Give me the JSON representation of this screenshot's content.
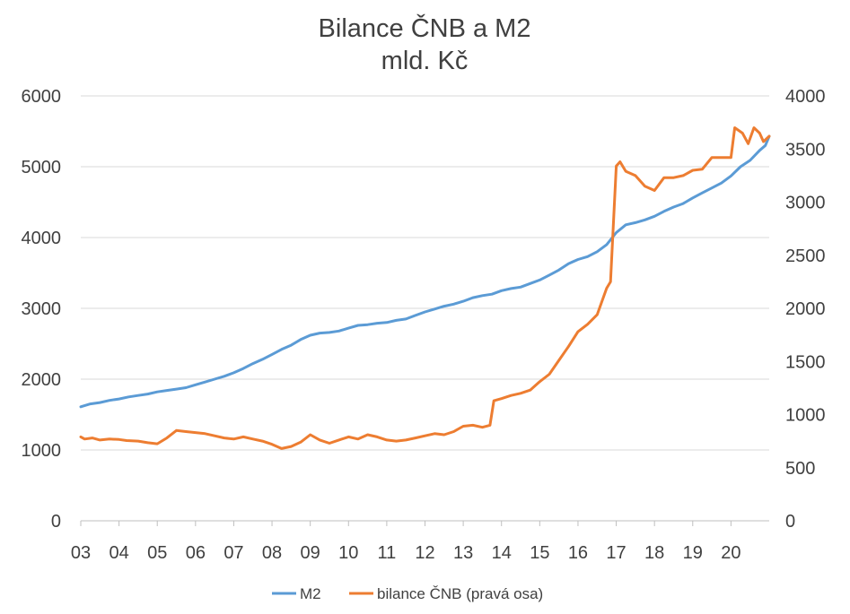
{
  "chart_data": {
    "type": "line",
    "title": "Bilance ČNB a M2",
    "subtitle": "mld. Kč",
    "x_ticks": [
      "03",
      "04",
      "05",
      "06",
      "07",
      "08",
      "09",
      "10",
      "11",
      "12",
      "13",
      "14",
      "15",
      "16",
      "17",
      "18",
      "19",
      "20"
    ],
    "x_range": [
      2003,
      2021
    ],
    "left_axis": {
      "ticks": [
        "0",
        "1000",
        "2000",
        "3000",
        "4000",
        "5000",
        "6000"
      ],
      "ylim": [
        0,
        6000
      ]
    },
    "right_axis": {
      "ticks": [
        "0",
        "500",
        "1000",
        "1500",
        "2000",
        "2500",
        "3000",
        "3500",
        "4000"
      ],
      "ylim": [
        0,
        4000
      ]
    },
    "grid": true,
    "legend_position": "bottom",
    "series": [
      {
        "name": "M2",
        "axis": "left",
        "color": "#5b9bd5",
        "points": [
          [
            2003.0,
            1610
          ],
          [
            2003.25,
            1650
          ],
          [
            2003.5,
            1670
          ],
          [
            2003.75,
            1700
          ],
          [
            2004.0,
            1720
          ],
          [
            2004.25,
            1750
          ],
          [
            2004.5,
            1770
          ],
          [
            2004.75,
            1790
          ],
          [
            2005.0,
            1820
          ],
          [
            2005.25,
            1840
          ],
          [
            2005.5,
            1860
          ],
          [
            2005.75,
            1880
          ],
          [
            2006.0,
            1920
          ],
          [
            2006.25,
            1960
          ],
          [
            2006.5,
            2000
          ],
          [
            2006.75,
            2040
          ],
          [
            2007.0,
            2090
          ],
          [
            2007.25,
            2150
          ],
          [
            2007.5,
            2220
          ],
          [
            2007.75,
            2280
          ],
          [
            2008.0,
            2350
          ],
          [
            2008.25,
            2420
          ],
          [
            2008.5,
            2480
          ],
          [
            2008.75,
            2560
          ],
          [
            2009.0,
            2620
          ],
          [
            2009.25,
            2650
          ],
          [
            2009.5,
            2660
          ],
          [
            2009.75,
            2680
          ],
          [
            2010.0,
            2720
          ],
          [
            2010.25,
            2760
          ],
          [
            2010.5,
            2770
          ],
          [
            2010.75,
            2790
          ],
          [
            2011.0,
            2800
          ],
          [
            2011.25,
            2830
          ],
          [
            2011.5,
            2850
          ],
          [
            2011.75,
            2900
          ],
          [
            2012.0,
            2950
          ],
          [
            2012.25,
            2990
          ],
          [
            2012.5,
            3030
          ],
          [
            2012.75,
            3060
          ],
          [
            2013.0,
            3100
          ],
          [
            2013.25,
            3150
          ],
          [
            2013.5,
            3180
          ],
          [
            2013.75,
            3200
          ],
          [
            2014.0,
            3250
          ],
          [
            2014.25,
            3280
          ],
          [
            2014.5,
            3300
          ],
          [
            2014.75,
            3350
          ],
          [
            2015.0,
            3400
          ],
          [
            2015.25,
            3470
          ],
          [
            2015.5,
            3540
          ],
          [
            2015.75,
            3630
          ],
          [
            2016.0,
            3690
          ],
          [
            2016.25,
            3730
          ],
          [
            2016.5,
            3800
          ],
          [
            2016.75,
            3900
          ],
          [
            2017.0,
            4070
          ],
          [
            2017.25,
            4180
          ],
          [
            2017.5,
            4210
          ],
          [
            2017.75,
            4250
          ],
          [
            2018.0,
            4300
          ],
          [
            2018.25,
            4370
          ],
          [
            2018.5,
            4430
          ],
          [
            2018.75,
            4480
          ],
          [
            2019.0,
            4560
          ],
          [
            2019.25,
            4630
          ],
          [
            2019.5,
            4700
          ],
          [
            2019.75,
            4770
          ],
          [
            2020.0,
            4870
          ],
          [
            2020.25,
            5000
          ],
          [
            2020.5,
            5090
          ],
          [
            2020.75,
            5230
          ],
          [
            2020.9,
            5300
          ],
          [
            2021.0,
            5430
          ]
        ]
      },
      {
        "name": "bilance ČNB (pravá osa)",
        "axis": "right",
        "color": "#ed7d31",
        "points": [
          [
            2003.0,
            790
          ],
          [
            2003.1,
            770
          ],
          [
            2003.3,
            780
          ],
          [
            2003.5,
            760
          ],
          [
            2003.75,
            770
          ],
          [
            2004.0,
            765
          ],
          [
            2004.2,
            755
          ],
          [
            2004.5,
            750
          ],
          [
            2004.75,
            735
          ],
          [
            2005.0,
            725
          ],
          [
            2005.25,
            780
          ],
          [
            2005.5,
            850
          ],
          [
            2005.75,
            840
          ],
          [
            2006.0,
            830
          ],
          [
            2006.25,
            820
          ],
          [
            2006.5,
            800
          ],
          [
            2006.75,
            780
          ],
          [
            2007.0,
            770
          ],
          [
            2007.25,
            790
          ],
          [
            2007.5,
            770
          ],
          [
            2007.75,
            750
          ],
          [
            2008.0,
            720
          ],
          [
            2008.25,
            680
          ],
          [
            2008.5,
            700
          ],
          [
            2008.75,
            740
          ],
          [
            2009.0,
            810
          ],
          [
            2009.25,
            760
          ],
          [
            2009.5,
            730
          ],
          [
            2009.75,
            760
          ],
          [
            2010.0,
            790
          ],
          [
            2010.25,
            770
          ],
          [
            2010.5,
            810
          ],
          [
            2010.75,
            790
          ],
          [
            2011.0,
            760
          ],
          [
            2011.25,
            750
          ],
          [
            2011.5,
            760
          ],
          [
            2011.75,
            780
          ],
          [
            2012.0,
            800
          ],
          [
            2012.25,
            820
          ],
          [
            2012.5,
            810
          ],
          [
            2012.75,
            840
          ],
          [
            2013.0,
            890
          ],
          [
            2013.25,
            900
          ],
          [
            2013.5,
            880
          ],
          [
            2013.7,
            900
          ],
          [
            2013.8,
            1130
          ],
          [
            2014.0,
            1150
          ],
          [
            2014.25,
            1180
          ],
          [
            2014.5,
            1200
          ],
          [
            2014.75,
            1230
          ],
          [
            2015.0,
            1310
          ],
          [
            2015.25,
            1380
          ],
          [
            2015.5,
            1510
          ],
          [
            2015.75,
            1640
          ],
          [
            2016.0,
            1780
          ],
          [
            2016.25,
            1850
          ],
          [
            2016.5,
            1940
          ],
          [
            2016.75,
            2190
          ],
          [
            2016.85,
            2250
          ],
          [
            2017.0,
            3340
          ],
          [
            2017.1,
            3380
          ],
          [
            2017.25,
            3290
          ],
          [
            2017.5,
            3250
          ],
          [
            2017.75,
            3150
          ],
          [
            2018.0,
            3110
          ],
          [
            2018.25,
            3230
          ],
          [
            2018.5,
            3230
          ],
          [
            2018.75,
            3250
          ],
          [
            2019.0,
            3300
          ],
          [
            2019.25,
            3310
          ],
          [
            2019.5,
            3420
          ],
          [
            2019.75,
            3420
          ],
          [
            2020.0,
            3420
          ],
          [
            2020.1,
            3700
          ],
          [
            2020.3,
            3650
          ],
          [
            2020.45,
            3550
          ],
          [
            2020.6,
            3700
          ],
          [
            2020.75,
            3650
          ],
          [
            2020.85,
            3570
          ],
          [
            2021.0,
            3620
          ]
        ]
      }
    ]
  }
}
